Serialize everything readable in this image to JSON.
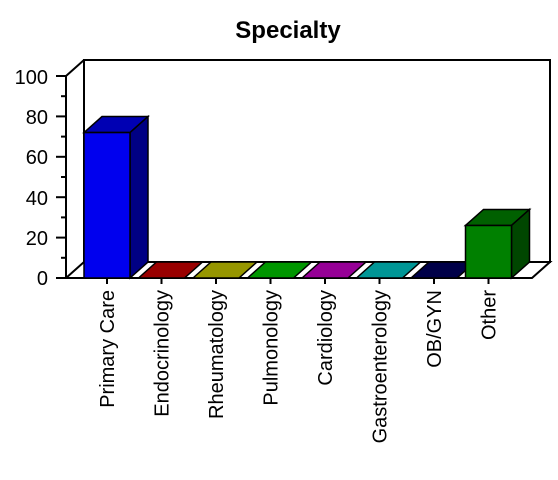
{
  "chart_data": {
    "type": "bar",
    "title": "Specialty",
    "xlabel": "",
    "ylabel": "",
    "categories": [
      "Primary Care",
      "Endocrinology",
      "Rheumatology",
      "Pulmonology",
      "Cardiology",
      "Gastroenterology",
      "OB/GYN",
      "Other"
    ],
    "values": [
      72,
      0,
      0,
      0,
      0,
      0,
      0,
      26
    ],
    "colors": [
      "#0000ee",
      "#cc0000",
      "#c8c800",
      "#00c800",
      "#c800c8",
      "#00c8c8",
      "#000060",
      "#008000"
    ],
    "ylim": [
      0,
      100
    ],
    "yticks": [
      "0",
      "20",
      "40",
      "60",
      "80",
      "100"
    ],
    "grid": false,
    "style": "3d"
  }
}
